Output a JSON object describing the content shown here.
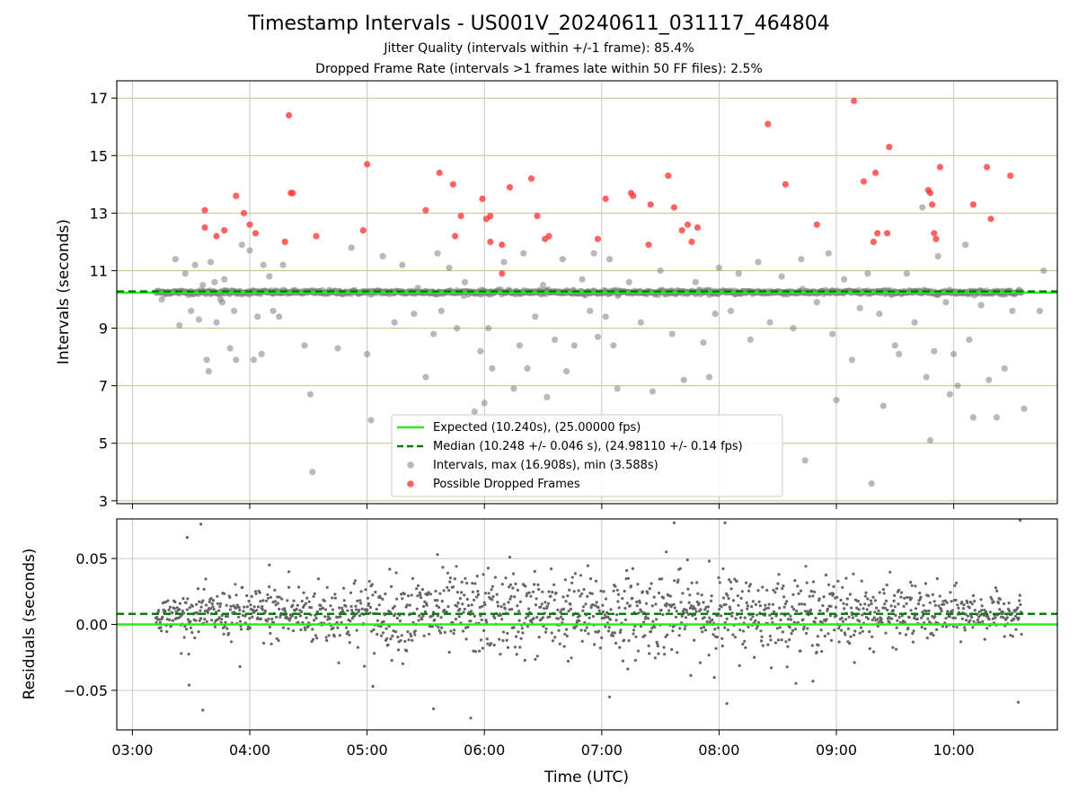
{
  "chart_data": [
    {
      "type": "scatter",
      "title": "Timestamp Intervals - US001V_20240611_031117_464804",
      "subtitle_lines": [
        "Jitter Quality (intervals within +/-1 frame): 85.4%",
        "Dropped Frame Rate (intervals >1 frames late within 50 FF files): 2.5%"
      ],
      "ylabel": "Intervals (seconds)",
      "ylim": [
        2.9,
        17.6
      ],
      "yticks": [
        "3",
        "5",
        "7",
        "9",
        "11",
        "13",
        "15",
        "17"
      ],
      "xlim": [
        "02:52",
        "10:53"
      ],
      "grid": true,
      "legend_position": "lower center",
      "expected_line": {
        "label": "Expected (10.240s), (25.00000 fps)",
        "y": 10.24,
        "color": "#22ee22"
      },
      "median_line": {
        "label": "Median (10.248 +/- 0.046 s), (24.98110 +/- 0.14 fps)",
        "y": 10.248,
        "color": "#008000"
      },
      "intervals_label": "Intervals, max (16.908s), min (3.588s)",
      "dropped_label": "Possible Dropped Frames",
      "intervals_color": "#808080",
      "dropped_color": "#ff3030",
      "intervals_outliers": [
        [
          "03:15",
          10.0
        ],
        [
          "03:22",
          11.4
        ],
        [
          "03:24",
          9.1
        ],
        [
          "03:27",
          10.9
        ],
        [
          "03:30",
          9.6
        ],
        [
          "03:32",
          11.2
        ],
        [
          "03:34",
          9.3
        ],
        [
          "03:36",
          10.5
        ],
        [
          "03:38",
          7.9
        ],
        [
          "03:39",
          7.5
        ],
        [
          "03:40",
          11.3
        ],
        [
          "03:42",
          10.6
        ],
        [
          "03:43",
          9.2
        ],
        [
          "03:45",
          10.0
        ],
        [
          "03:46",
          9.9
        ],
        [
          "03:47",
          10.7
        ],
        [
          "03:50",
          8.3
        ],
        [
          "03:52",
          9.6
        ],
        [
          "03:53",
          7.9
        ],
        [
          "03:56",
          11.9
        ],
        [
          "04:00",
          11.7
        ],
        [
          "04:02",
          7.9
        ],
        [
          "04:04",
          9.4
        ],
        [
          "04:06",
          8.1
        ],
        [
          "04:07",
          11.2
        ],
        [
          "04:10",
          10.8
        ],
        [
          "04:12",
          9.6
        ],
        [
          "04:15",
          9.4
        ],
        [
          "04:17",
          11.2
        ],
        [
          "04:28",
          8.4
        ],
        [
          "04:31",
          6.7
        ],
        [
          "04:32",
          4.0
        ],
        [
          "04:45",
          8.3
        ],
        [
          "04:52",
          11.8
        ],
        [
          "05:00",
          8.1
        ],
        [
          "05:02",
          5.8
        ],
        [
          "05:08",
          11.5
        ],
        [
          "05:14",
          9.2
        ],
        [
          "05:18",
          11.2
        ],
        [
          "05:24",
          9.5
        ],
        [
          "05:26",
          10.4
        ],
        [
          "05:30",
          7.3
        ],
        [
          "05:34",
          8.8
        ],
        [
          "05:36",
          11.6
        ],
        [
          "05:38",
          9.6
        ],
        [
          "05:42",
          11.1
        ],
        [
          "05:46",
          9.0
        ],
        [
          "05:50",
          10.6
        ],
        [
          "05:55",
          6.1
        ],
        [
          "05:58",
          8.2
        ],
        [
          "06:00",
          6.4
        ],
        [
          "06:02",
          9.0
        ],
        [
          "06:04",
          7.6
        ],
        [
          "06:10",
          11.3
        ],
        [
          "06:15",
          6.9
        ],
        [
          "06:18",
          8.4
        ],
        [
          "06:20",
          11.6
        ],
        [
          "06:22",
          7.6
        ],
        [
          "06:26",
          9.4
        ],
        [
          "06:30",
          10.5
        ],
        [
          "06:32",
          6.6
        ],
        [
          "06:36",
          8.6
        ],
        [
          "06:40",
          11.4
        ],
        [
          "06:42",
          7.5
        ],
        [
          "06:46",
          8.4
        ],
        [
          "06:50",
          10.7
        ],
        [
          "06:54",
          9.6
        ],
        [
          "06:56",
          11.6
        ],
        [
          "06:58",
          8.7
        ],
        [
          "07:02",
          9.4
        ],
        [
          "07:04",
          11.4
        ],
        [
          "07:06",
          8.4
        ],
        [
          "07:08",
          6.9
        ],
        [
          "07:14",
          10.6
        ],
        [
          "07:20",
          9.2
        ],
        [
          "07:26",
          6.8
        ],
        [
          "07:30",
          11.0
        ],
        [
          "07:36",
          8.8
        ],
        [
          "07:42",
          7.2
        ],
        [
          "07:48",
          10.6
        ],
        [
          "07:52",
          8.5
        ],
        [
          "07:55",
          7.3
        ],
        [
          "07:58",
          9.5
        ],
        [
          "08:00",
          11.1
        ],
        [
          "08:06",
          9.6
        ],
        [
          "08:10",
          10.9
        ],
        [
          "08:16",
          8.6
        ],
        [
          "08:20",
          11.3
        ],
        [
          "08:26",
          9.2
        ],
        [
          "08:32",
          10.8
        ],
        [
          "08:38",
          9.0
        ],
        [
          "08:42",
          11.4
        ],
        [
          "08:44",
          4.4
        ],
        [
          "08:50",
          9.9
        ],
        [
          "08:56",
          11.6
        ],
        [
          "08:58",
          8.8
        ],
        [
          "09:00",
          6.5
        ],
        [
          "09:04",
          10.7
        ],
        [
          "09:08",
          7.9
        ],
        [
          "09:12",
          9.7
        ],
        [
          "09:16",
          10.9
        ],
        [
          "09:18",
          3.6
        ],
        [
          "09:22",
          9.5
        ],
        [
          "09:24",
          6.3
        ],
        [
          "09:30",
          8.4
        ],
        [
          "09:32",
          8.1
        ],
        [
          "09:36",
          10.9
        ],
        [
          "09:40",
          9.2
        ],
        [
          "09:44",
          13.2
        ],
        [
          "09:46",
          7.3
        ],
        [
          "09:48",
          5.1
        ],
        [
          "09:50",
          8.2
        ],
        [
          "09:52",
          11.5
        ],
        [
          "09:56",
          9.9
        ],
        [
          "09:58",
          6.7
        ],
        [
          "10:00",
          8.1
        ],
        [
          "10:02",
          7.0
        ],
        [
          "10:06",
          11.9
        ],
        [
          "10:08",
          8.6
        ],
        [
          "10:10",
          5.9
        ],
        [
          "10:14",
          9.8
        ],
        [
          "10:18",
          7.2
        ],
        [
          "10:22",
          5.9
        ],
        [
          "10:26",
          7.6
        ],
        [
          "10:30",
          9.6
        ],
        [
          "10:36",
          6.2
        ],
        [
          "10:44",
          9.6
        ],
        [
          "10:46",
          11.0
        ]
      ],
      "dropped_frames": [
        [
          "03:37",
          13.1
        ],
        [
          "03:37",
          12.5
        ],
        [
          "03:43",
          12.2
        ],
        [
          "03:47",
          12.4
        ],
        [
          "03:53",
          13.6
        ],
        [
          "03:57",
          13.0
        ],
        [
          "04:00",
          12.6
        ],
        [
          "04:03",
          12.3
        ],
        [
          "04:18",
          12.0
        ],
        [
          "04:20",
          16.4
        ],
        [
          "04:21",
          13.7
        ],
        [
          "04:22",
          13.7
        ],
        [
          "04:34",
          12.2
        ],
        [
          "04:58",
          12.4
        ],
        [
          "05:00",
          14.7
        ],
        [
          "05:30",
          13.1
        ],
        [
          "05:37",
          14.4
        ],
        [
          "05:44",
          14.0
        ],
        [
          "05:45",
          12.2
        ],
        [
          "05:48",
          12.9
        ],
        [
          "05:59",
          13.5
        ],
        [
          "06:01",
          12.8
        ],
        [
          "06:03",
          12.9
        ],
        [
          "06:03",
          12.0
        ],
        [
          "06:09",
          11.9
        ],
        [
          "06:09",
          10.9
        ],
        [
          "06:13",
          13.9
        ],
        [
          "06:24",
          14.2
        ],
        [
          "06:27",
          12.9
        ],
        [
          "06:31",
          12.1
        ],
        [
          "06:33",
          12.2
        ],
        [
          "06:58",
          12.1
        ],
        [
          "07:02",
          13.5
        ],
        [
          "07:15",
          13.7
        ],
        [
          "07:16",
          13.6
        ],
        [
          "07:24",
          11.9
        ],
        [
          "07:25",
          13.3
        ],
        [
          "07:34",
          14.3
        ],
        [
          "07:37",
          13.2
        ],
        [
          "07:41",
          12.4
        ],
        [
          "07:44",
          12.6
        ],
        [
          "07:46",
          12.0
        ],
        [
          "07:49",
          12.5
        ],
        [
          "08:25",
          16.1
        ],
        [
          "08:34",
          14.0
        ],
        [
          "08:50",
          12.6
        ],
        [
          "09:09",
          16.9
        ],
        [
          "09:14",
          14.1
        ],
        [
          "09:19",
          12.0
        ],
        [
          "09:20",
          14.4
        ],
        [
          "09:21",
          12.3
        ],
        [
          "09:26",
          12.3
        ],
        [
          "09:27",
          15.3
        ],
        [
          "09:47",
          13.8
        ],
        [
          "09:48",
          13.7
        ],
        [
          "09:49",
          13.3
        ],
        [
          "09:50",
          12.3
        ],
        [
          "09:51",
          12.1
        ],
        [
          "09:53",
          14.6
        ],
        [
          "10:10",
          13.3
        ],
        [
          "10:17",
          14.6
        ],
        [
          "10:19",
          12.8
        ],
        [
          "10:29",
          14.3
        ]
      ]
    },
    {
      "type": "scatter",
      "xlabel": "Time (UTC)",
      "ylabel": "Residuals (seconds)",
      "ylim": [
        -0.08,
        0.08
      ],
      "yticks": [
        "0.05",
        "0.00",
        "−0.05"
      ],
      "xticks": [
        "03:00",
        "04:00",
        "05:00",
        "06:00",
        "07:00",
        "08:00",
        "09:00",
        "10:00"
      ],
      "grid": true,
      "zero_line": {
        "y": 0.0,
        "color": "#22ee22"
      },
      "median_line": {
        "y": 0.008,
        "color": "#008000"
      },
      "residual_band": {
        "start": "03:12",
        "end": "10:35",
        "center": 0.008,
        "sigma_edges": 0.006,
        "sigma_middle": 0.016
      },
      "residual_outliers": [
        [
          "03:25",
          -0.022
        ],
        [
          "03:28",
          0.066
        ],
        [
          "03:29",
          -0.046
        ],
        [
          "03:35",
          0.076
        ],
        [
          "03:36",
          -0.065
        ],
        [
          "03:55",
          -0.032
        ],
        [
          "04:10",
          0.045
        ],
        [
          "04:20",
          0.04
        ],
        [
          "05:03",
          -0.047
        ],
        [
          "05:34",
          -0.064
        ],
        [
          "05:36",
          0.053
        ],
        [
          "05:53",
          -0.071
        ],
        [
          "06:13",
          0.051
        ],
        [
          "07:04",
          -0.055
        ],
        [
          "07:33",
          0.055
        ],
        [
          "07:37",
          0.077
        ],
        [
          "07:55",
          0.048
        ],
        [
          "08:03",
          0.077
        ],
        [
          "08:04",
          -0.06
        ],
        [
          "08:48",
          -0.043
        ],
        [
          "09:05",
          0.035
        ],
        [
          "09:38",
          0.032
        ],
        [
          "10:33",
          -0.059
        ],
        [
          "10:34",
          0.079
        ]
      ]
    }
  ],
  "axes_colors": {
    "hgrid_top": "#c8c084",
    "grid": "#c8c8c8"
  }
}
